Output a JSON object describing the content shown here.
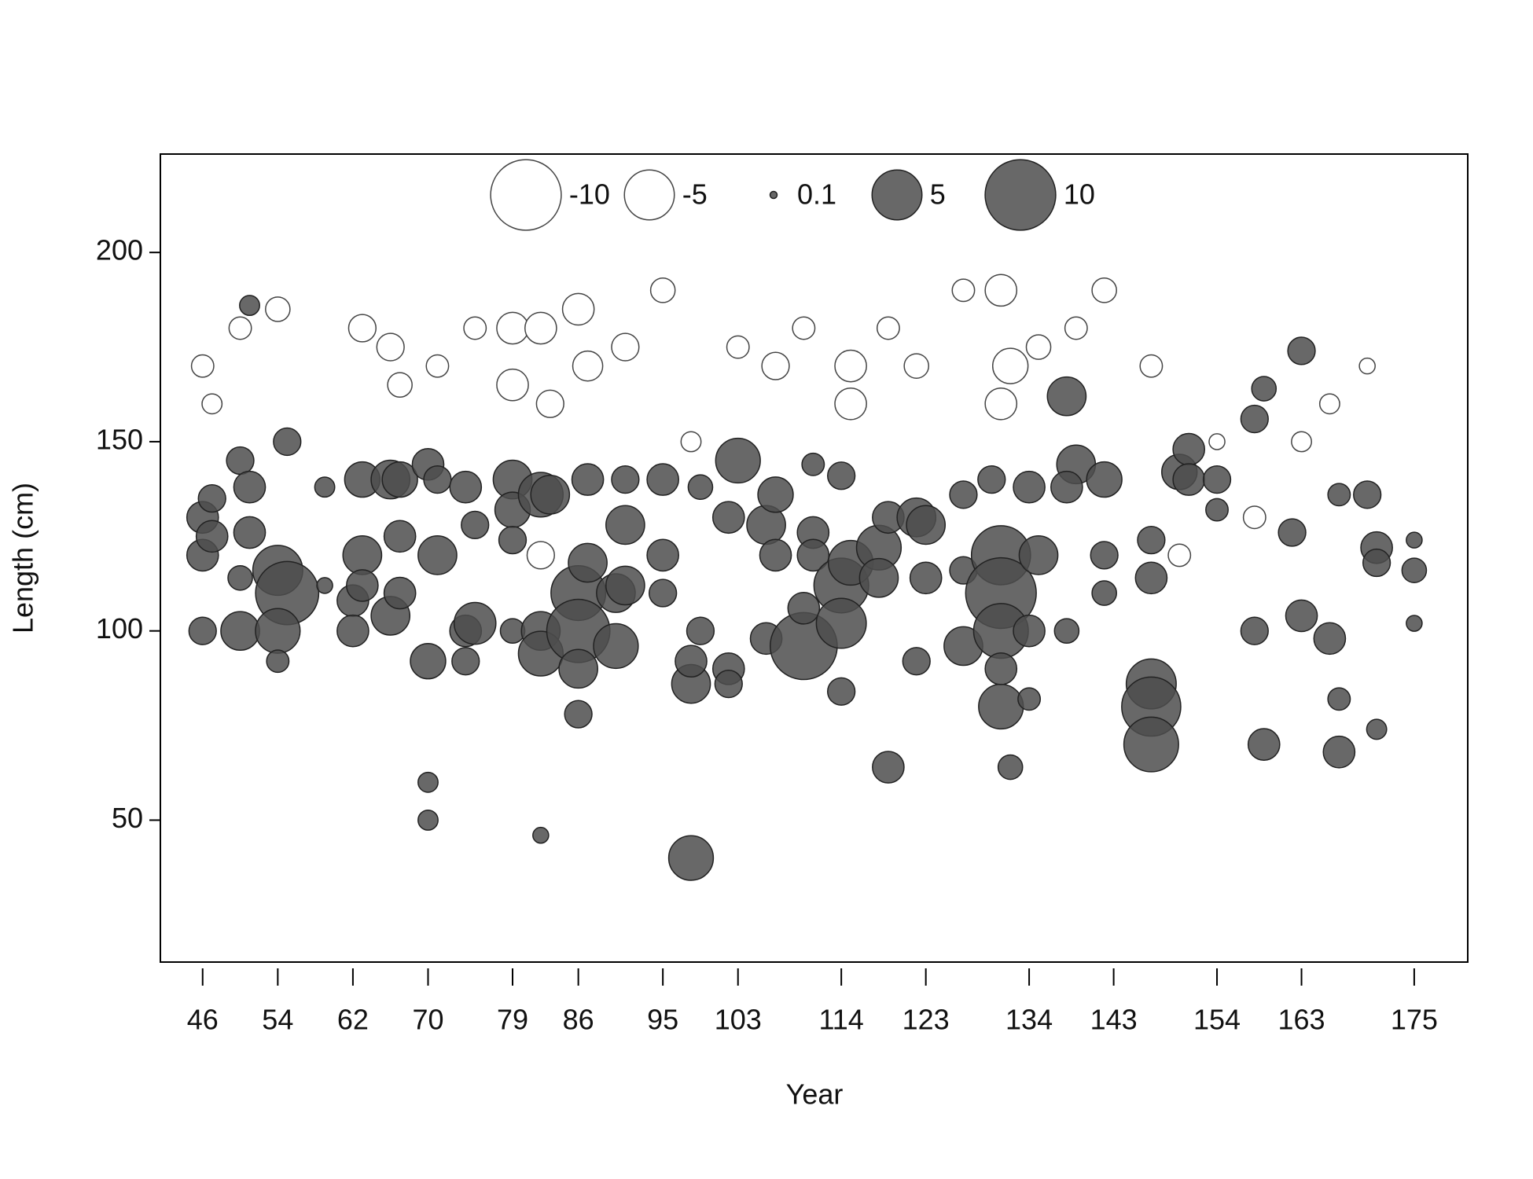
{
  "chart_data": {
    "type": "bubble",
    "x_label": "Year",
    "y_label": "Length (cm)",
    "xlim": [
      41.5,
      180.7
    ],
    "ylim": [
      12.5,
      226
    ],
    "xticks": [
      46,
      54,
      62,
      70,
      79,
      86,
      95,
      103,
      114,
      123,
      134,
      143,
      154,
      163,
      175
    ],
    "yticks": [
      50,
      100,
      150,
      200
    ],
    "positive_color": "#4d4d4d",
    "negative_color": "#ffffff",
    "legend": [
      {
        "value": -10,
        "label": "-10"
      },
      {
        "value": -5,
        "label": "-5"
      },
      0.1,
      5,
      10
    ],
    "points": [
      {
        "x": 46,
        "y": 170,
        "size": -1
      },
      {
        "x": 47,
        "y": 160,
        "size": -0.8
      },
      {
        "x": 50,
        "y": 180,
        "size": -1
      },
      {
        "x": 54,
        "y": 185,
        "size": -1.2
      },
      {
        "x": 63,
        "y": 180,
        "size": -1.5
      },
      {
        "x": 66,
        "y": 175,
        "size": -1.5
      },
      {
        "x": 67,
        "y": 165,
        "size": -1.2
      },
      {
        "x": 71,
        "y": 170,
        "size": -1
      },
      {
        "x": 75,
        "y": 180,
        "size": -1
      },
      {
        "x": 79,
        "y": 180,
        "size": -2
      },
      {
        "x": 79,
        "y": 165,
        "size": -2
      },
      {
        "x": 82,
        "y": 180,
        "size": -2
      },
      {
        "x": 83,
        "y": 160,
        "size": -1.5
      },
      {
        "x": 86,
        "y": 185,
        "size": -2
      },
      {
        "x": 87,
        "y": 170,
        "size": -1.8
      },
      {
        "x": 91,
        "y": 175,
        "size": -1.5
      },
      {
        "x": 95,
        "y": 190,
        "size": -1.2
      },
      {
        "x": 103,
        "y": 175,
        "size": -1
      },
      {
        "x": 107,
        "y": 170,
        "size": -1.5
      },
      {
        "x": 110,
        "y": 180,
        "size": -1
      },
      {
        "x": 115,
        "y": 170,
        "size": -2
      },
      {
        "x": 115,
        "y": 160,
        "size": -2
      },
      {
        "x": 119,
        "y": 180,
        "size": -1
      },
      {
        "x": 122,
        "y": 170,
        "size": -1.2
      },
      {
        "x": 127,
        "y": 190,
        "size": -1
      },
      {
        "x": 131,
        "y": 190,
        "size": -2
      },
      {
        "x": 132,
        "y": 170,
        "size": -2.5
      },
      {
        "x": 135,
        "y": 175,
        "size": -1.2
      },
      {
        "x": 139,
        "y": 180,
        "size": -1
      },
      {
        "x": 142,
        "y": 190,
        "size": -1.2
      },
      {
        "x": 147,
        "y": 170,
        "size": -1
      },
      {
        "x": 150,
        "y": 120,
        "size": -1
      },
      {
        "x": 154,
        "y": 150,
        "size": -0.5
      },
      {
        "x": 158,
        "y": 130,
        "size": -1
      },
      {
        "x": 163,
        "y": 150,
        "size": -0.8
      },
      {
        "x": 166,
        "y": 160,
        "size": -0.8
      },
      {
        "x": 170,
        "y": 170,
        "size": -0.5
      },
      {
        "x": 82,
        "y": 120,
        "size": -1.5
      },
      {
        "x": 98,
        "y": 150,
        "size": -0.8
      },
      {
        "x": 131,
        "y": 160,
        "size": -2
      },
      {
        "x": 46,
        "y": 130,
        "size": 2
      },
      {
        "x": 46,
        "y": 120,
        "size": 2
      },
      {
        "x": 46,
        "y": 100,
        "size": 1.5
      },
      {
        "x": 47,
        "y": 135,
        "size": 1.5
      },
      {
        "x": 47,
        "y": 125,
        "size": 2
      },
      {
        "x": 50,
        "y": 145,
        "size": 1.5
      },
      {
        "x": 50,
        "y": 114,
        "size": 1.2
      },
      {
        "x": 51,
        "y": 138,
        "size": 2
      },
      {
        "x": 51,
        "y": 126,
        "size": 2
      },
      {
        "x": 50,
        "y": 100,
        "size": 3
      },
      {
        "x": 51,
        "y": 186,
        "size": 0.8
      },
      {
        "x": 54,
        "y": 116,
        "size": 5
      },
      {
        "x": 55,
        "y": 110,
        "size": 8
      },
      {
        "x": 54,
        "y": 100,
        "size": 4
      },
      {
        "x": 55,
        "y": 150,
        "size": 1.5
      },
      {
        "x": 54,
        "y": 92,
        "size": 1
      },
      {
        "x": 59,
        "y": 138,
        "size": 0.8
      },
      {
        "x": 59,
        "y": 112,
        "size": 0.5
      },
      {
        "x": 62,
        "y": 108,
        "size": 2
      },
      {
        "x": 62,
        "y": 100,
        "size": 2
      },
      {
        "x": 63,
        "y": 140,
        "size": 2.5
      },
      {
        "x": 63,
        "y": 120,
        "size": 3
      },
      {
        "x": 63,
        "y": 112,
        "size": 2
      },
      {
        "x": 66,
        "y": 140,
        "size": 3
      },
      {
        "x": 67,
        "y": 140,
        "size": 2.5
      },
      {
        "x": 66,
        "y": 104,
        "size": 3
      },
      {
        "x": 67,
        "y": 125,
        "size": 2
      },
      {
        "x": 67,
        "y": 110,
        "size": 2
      },
      {
        "x": 70,
        "y": 92,
        "size": 2.5
      },
      {
        "x": 70,
        "y": 144,
        "size": 2
      },
      {
        "x": 71,
        "y": 120,
        "size": 3
      },
      {
        "x": 70,
        "y": 60,
        "size": 0.8
      },
      {
        "x": 70,
        "y": 50,
        "size": 0.8
      },
      {
        "x": 71,
        "y": 140,
        "size": 1.5
      },
      {
        "x": 74,
        "y": 138,
        "size": 2
      },
      {
        "x": 74,
        "y": 100,
        "size": 2
      },
      {
        "x": 75,
        "y": 102,
        "size": 3.5
      },
      {
        "x": 75,
        "y": 128,
        "size": 1.5
      },
      {
        "x": 74,
        "y": 92,
        "size": 1.5
      },
      {
        "x": 79,
        "y": 140,
        "size": 3
      },
      {
        "x": 79,
        "y": 132,
        "size": 2.5
      },
      {
        "x": 79,
        "y": 124,
        "size": 1.5
      },
      {
        "x": 79,
        "y": 100,
        "size": 1.2
      },
      {
        "x": 82,
        "y": 136,
        "size": 4
      },
      {
        "x": 82,
        "y": 100,
        "size": 3
      },
      {
        "x": 82,
        "y": 94,
        "size": 4
      },
      {
        "x": 83,
        "y": 136,
        "size": 3
      },
      {
        "x": 82,
        "y": 46,
        "size": 0.5
      },
      {
        "x": 86,
        "y": 110,
        "size": 6
      },
      {
        "x": 86,
        "y": 100,
        "size": 8
      },
      {
        "x": 87,
        "y": 118,
        "size": 3
      },
      {
        "x": 86,
        "y": 78,
        "size": 1.5
      },
      {
        "x": 87,
        "y": 140,
        "size": 2
      },
      {
        "x": 86,
        "y": 90,
        "size": 3
      },
      {
        "x": 90,
        "y": 96,
        "size": 4
      },
      {
        "x": 90,
        "y": 110,
        "size": 3
      },
      {
        "x": 91,
        "y": 128,
        "size": 3
      },
      {
        "x": 91,
        "y": 112,
        "size": 3
      },
      {
        "x": 91,
        "y": 140,
        "size": 1.5
      },
      {
        "x": 95,
        "y": 140,
        "size": 2
      },
      {
        "x": 95,
        "y": 120,
        "size": 2
      },
      {
        "x": 95,
        "y": 110,
        "size": 1.5
      },
      {
        "x": 98,
        "y": 40,
        "size": 4
      },
      {
        "x": 98,
        "y": 86,
        "size": 3
      },
      {
        "x": 98,
        "y": 92,
        "size": 2
      },
      {
        "x": 99,
        "y": 100,
        "size": 1.5
      },
      {
        "x": 99,
        "y": 138,
        "size": 1.2
      },
      {
        "x": 102,
        "y": 130,
        "size": 2
      },
      {
        "x": 103,
        "y": 145,
        "size": 4
      },
      {
        "x": 102,
        "y": 90,
        "size": 2
      },
      {
        "x": 102,
        "y": 86,
        "size": 1.5
      },
      {
        "x": 106,
        "y": 128,
        "size": 3
      },
      {
        "x": 107,
        "y": 136,
        "size": 2.5
      },
      {
        "x": 106,
        "y": 98,
        "size": 2
      },
      {
        "x": 107,
        "y": 120,
        "size": 2
      },
      {
        "x": 110,
        "y": 96,
        "size": 9
      },
      {
        "x": 110,
        "y": 106,
        "size": 2
      },
      {
        "x": 111,
        "y": 126,
        "size": 2
      },
      {
        "x": 111,
        "y": 120,
        "size": 2
      },
      {
        "x": 111,
        "y": 144,
        "size": 1
      },
      {
        "x": 114,
        "y": 112,
        "size": 6
      },
      {
        "x": 114,
        "y": 102,
        "size": 5
      },
      {
        "x": 115,
        "y": 118,
        "size": 4
      },
      {
        "x": 114,
        "y": 84,
        "size": 1.5
      },
      {
        "x": 114,
        "y": 141,
        "size": 1.5
      },
      {
        "x": 118,
        "y": 122,
        "size": 4
      },
      {
        "x": 118,
        "y": 114,
        "size": 3
      },
      {
        "x": 119,
        "y": 64,
        "size": 2
      },
      {
        "x": 119,
        "y": 130,
        "size": 2
      },
      {
        "x": 122,
        "y": 130,
        "size": 3
      },
      {
        "x": 123,
        "y": 128,
        "size": 3
      },
      {
        "x": 123,
        "y": 114,
        "size": 2
      },
      {
        "x": 122,
        "y": 92,
        "size": 1.5
      },
      {
        "x": 127,
        "y": 96,
        "size": 3
      },
      {
        "x": 127,
        "y": 136,
        "size": 1.5
      },
      {
        "x": 127,
        "y": 116,
        "size": 1.5
      },
      {
        "x": 131,
        "y": 120,
        "size": 7
      },
      {
        "x": 131,
        "y": 110,
        "size": 10
      },
      {
        "x": 131,
        "y": 100,
        "size": 6
      },
      {
        "x": 131,
        "y": 80,
        "size": 4
      },
      {
        "x": 132,
        "y": 64,
        "size": 1.2
      },
      {
        "x": 131,
        "y": 90,
        "size": 2
      },
      {
        "x": 130,
        "y": 140,
        "size": 1.5
      },
      {
        "x": 134,
        "y": 138,
        "size": 2
      },
      {
        "x": 135,
        "y": 120,
        "size": 3
      },
      {
        "x": 134,
        "y": 100,
        "size": 2
      },
      {
        "x": 134,
        "y": 82,
        "size": 1
      },
      {
        "x": 138,
        "y": 162,
        "size": 3
      },
      {
        "x": 139,
        "y": 144,
        "size": 3
      },
      {
        "x": 138,
        "y": 138,
        "size": 2
      },
      {
        "x": 138,
        "y": 100,
        "size": 1.2
      },
      {
        "x": 142,
        "y": 140,
        "size": 2.5
      },
      {
        "x": 142,
        "y": 120,
        "size": 1.5
      },
      {
        "x": 142,
        "y": 110,
        "size": 1.2
      },
      {
        "x": 147,
        "y": 86,
        "size": 5
      },
      {
        "x": 147,
        "y": 80,
        "size": 7
      },
      {
        "x": 147,
        "y": 70,
        "size": 6
      },
      {
        "x": 147,
        "y": 114,
        "size": 2
      },
      {
        "x": 147,
        "y": 124,
        "size": 1.5
      },
      {
        "x": 150,
        "y": 142,
        "size": 2.5
      },
      {
        "x": 151,
        "y": 148,
        "size": 2
      },
      {
        "x": 151,
        "y": 140,
        "size": 2
      },
      {
        "x": 154,
        "y": 140,
        "size": 1.5
      },
      {
        "x": 154,
        "y": 132,
        "size": 1
      },
      {
        "x": 158,
        "y": 156,
        "size": 1.5
      },
      {
        "x": 158,
        "y": 100,
        "size": 1.5
      },
      {
        "x": 159,
        "y": 164,
        "size": 1.2
      },
      {
        "x": 159,
        "y": 70,
        "size": 2
      },
      {
        "x": 162,
        "y": 126,
        "size": 1.5
      },
      {
        "x": 163,
        "y": 174,
        "size": 1.5
      },
      {
        "x": 163,
        "y": 104,
        "size": 2
      },
      {
        "x": 166,
        "y": 98,
        "size": 2
      },
      {
        "x": 167,
        "y": 68,
        "size": 2
      },
      {
        "x": 167,
        "y": 82,
        "size": 1
      },
      {
        "x": 167,
        "y": 136,
        "size": 1
      },
      {
        "x": 170,
        "y": 136,
        "size": 1.5
      },
      {
        "x": 171,
        "y": 122,
        "size": 2
      },
      {
        "x": 171,
        "y": 118,
        "size": 1.5
      },
      {
        "x": 171,
        "y": 74,
        "size": 0.8
      },
      {
        "x": 175,
        "y": 116,
        "size": 1.2
      },
      {
        "x": 175,
        "y": 124,
        "size": 0.5
      },
      {
        "x": 175,
        "y": 102,
        "size": 0.5
      }
    ]
  }
}
